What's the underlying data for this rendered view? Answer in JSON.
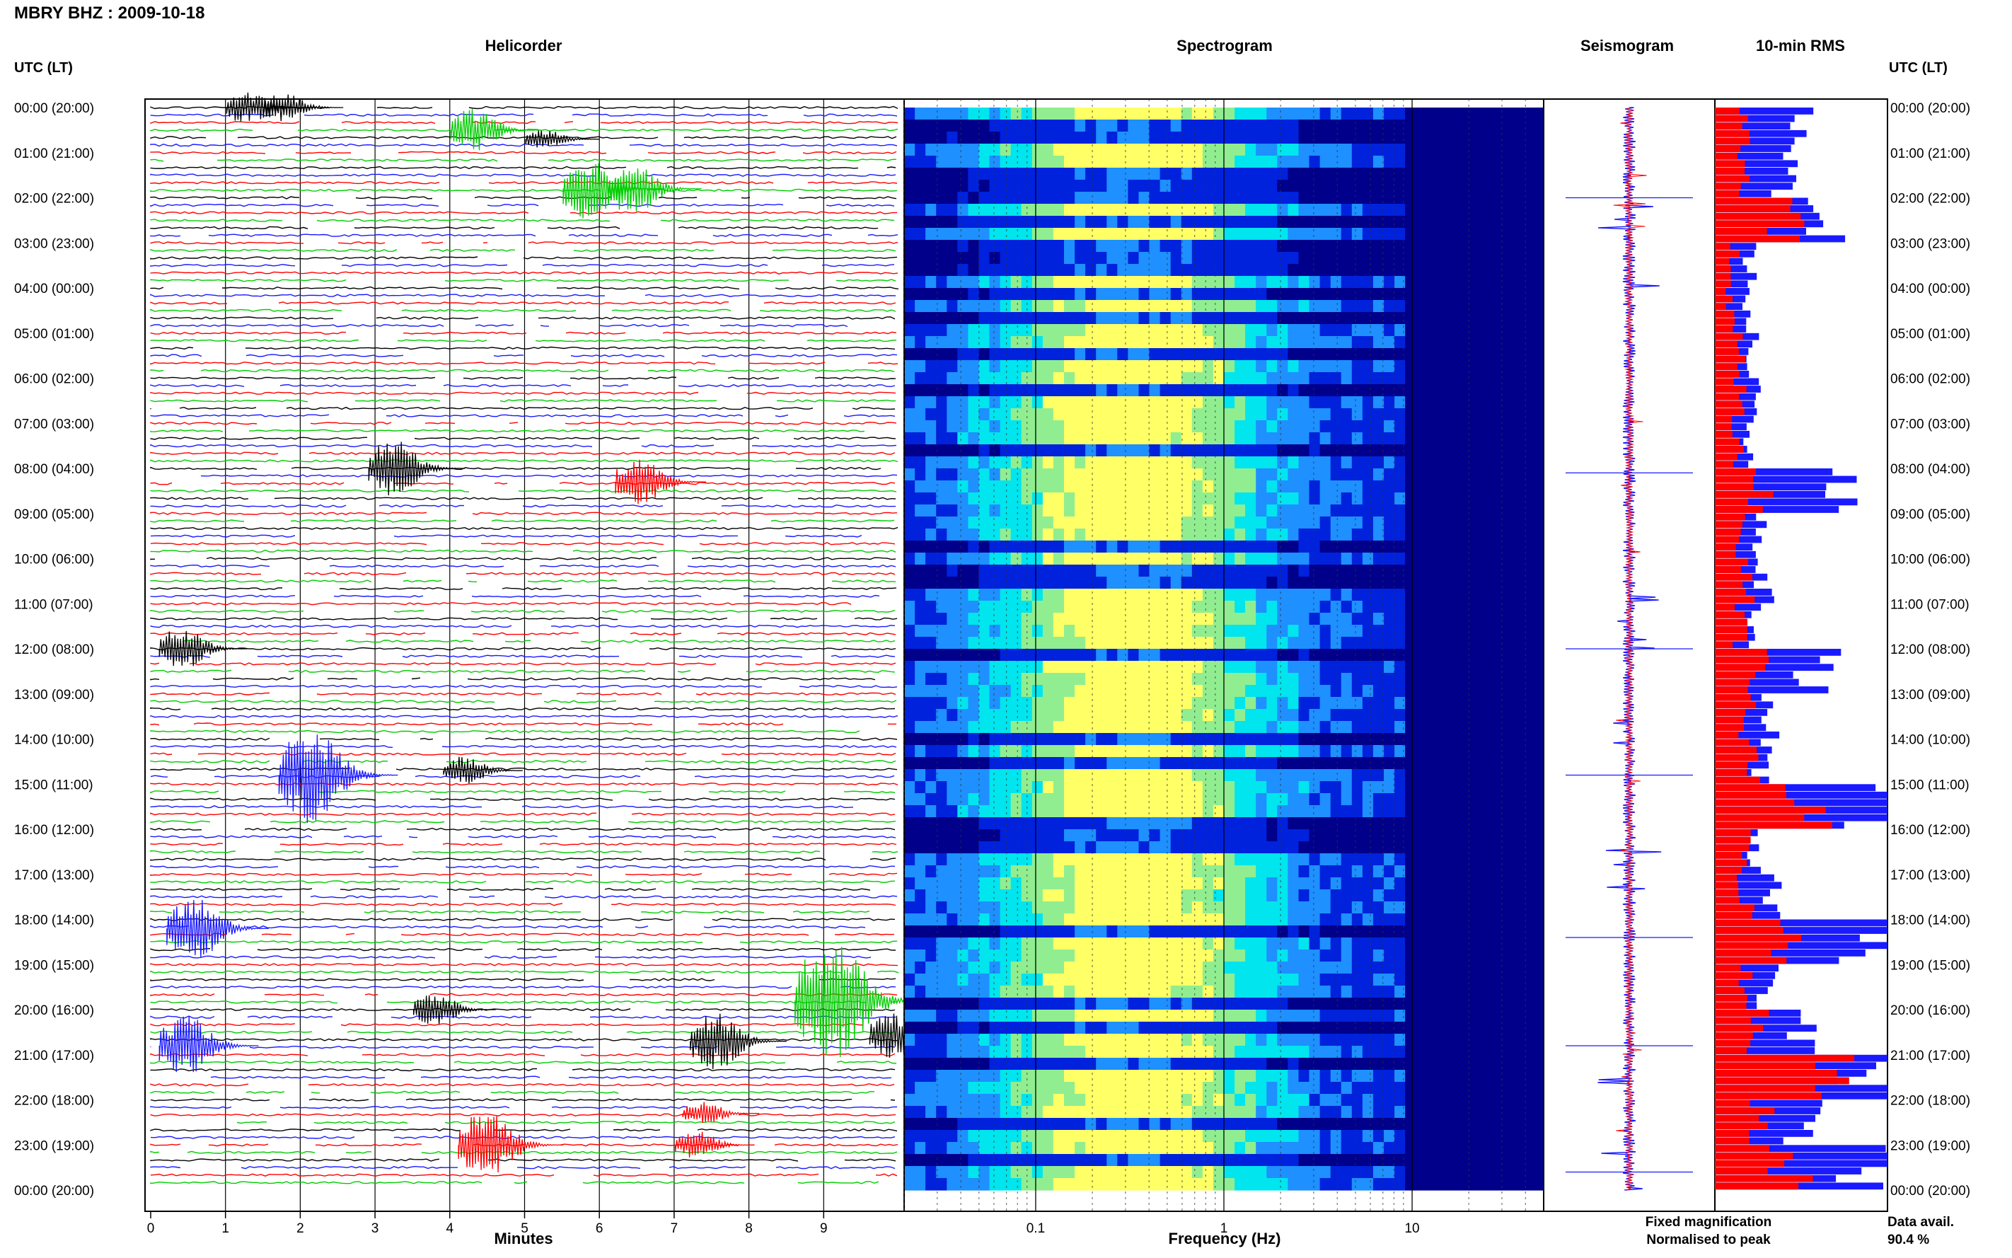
{
  "figure": {
    "title": "MBRY BHZ : 2009-10-18",
    "panels": {
      "helicorder": "Helicorder",
      "spectrogram": "Spectrogram",
      "seismogram": "Seismogram",
      "rms": "10-min RMS"
    },
    "left_axis_header": "UTC (LT)",
    "right_axis_header": "UTC (LT)",
    "legend": {
      "fixed": "Fixed magnification",
      "normalised": "Normalised to peak",
      "fixed_color": "#1a1aff",
      "normalised_color": "#ff0000"
    },
    "data_availability": {
      "label": "Data avail.",
      "value": "90.4 %"
    }
  },
  "chart_data": [
    {
      "type": "line",
      "panel": "helicorder",
      "xlabel": "Minutes",
      "x_ticks": [
        "0",
        "1",
        "2",
        "3",
        "4",
        "5",
        "6",
        "7",
        "8",
        "9"
      ],
      "xlim": [
        0,
        10
      ],
      "trace_minutes_per_line": 10,
      "trace_colors": [
        "#000000",
        "#1a1aff",
        "#ff0000",
        "#00cc00"
      ],
      "time_labels": [
        "00:00 (20:00)",
        "01:00 (21:00)",
        "02:00 (22:00)",
        "03:00 (23:00)",
        "04:00 (00:00)",
        "05:00 (01:00)",
        "06:00 (02:00)",
        "07:00 (03:00)",
        "08:00 (04:00)",
        "09:00 (05:00)",
        "10:00 (06:00)",
        "11:00 (07:00)",
        "12:00 (08:00)",
        "13:00 (09:00)",
        "14:00 (10:00)",
        "15:00 (11:00)",
        "16:00 (12:00)",
        "17:00 (13:00)",
        "18:00 (14:00)",
        "19:00 (15:00)",
        "20:00 (16:00)",
        "21:00 (17:00)",
        "22:00 (18:00)",
        "23:00 (19:00)",
        "00:00 (20:00)"
      ],
      "events": [
        {
          "hour": 0.0,
          "minute": 1.3,
          "amp": 0.7
        },
        {
          "hour": 0.0,
          "minute": 1.8,
          "amp": 0.6
        },
        {
          "hour": 0.5,
          "minute": 4.3,
          "amp": 0.9
        },
        {
          "hour": 0.7,
          "minute": 5.3,
          "amp": 0.4
        },
        {
          "hour": 1.8,
          "minute": 5.8,
          "amp": 1.3
        },
        {
          "hour": 1.8,
          "minute": 6.4,
          "amp": 1.1
        },
        {
          "hour": 8.0,
          "minute": 3.2,
          "amp": 1.2
        },
        {
          "hour": 8.3,
          "minute": 6.5,
          "amp": 1.0
        },
        {
          "hour": 12.0,
          "minute": 0.4,
          "amp": 0.9
        },
        {
          "hour": 14.8,
          "minute": 2.0,
          "amp": 2.0
        },
        {
          "hour": 14.7,
          "minute": 4.2,
          "amp": 0.6
        },
        {
          "hour": 18.2,
          "minute": 0.5,
          "amp": 1.4
        },
        {
          "hour": 19.8,
          "minute": 8.9,
          "amp": 2.6
        },
        {
          "hour": 20.0,
          "minute": 3.8,
          "amp": 0.7
        },
        {
          "hour": 20.8,
          "minute": 0.4,
          "amp": 1.3
        },
        {
          "hour": 20.7,
          "minute": 7.5,
          "amp": 1.2
        },
        {
          "hour": 20.6,
          "minute": 9.9,
          "amp": 1.0
        },
        {
          "hour": 23.0,
          "minute": 4.4,
          "amp": 1.5
        },
        {
          "hour": 23.0,
          "minute": 7.3,
          "amp": 0.6
        },
        {
          "hour": 22.3,
          "minute": 7.4,
          "amp": 0.5
        }
      ]
    },
    {
      "type": "heatmap",
      "panel": "spectrogram",
      "xlabel": "Frequency (Hz)",
      "x_scale": "log",
      "xlim": [
        0.02,
        50
      ],
      "x_tick_labels": [
        {
          "value": 0.1,
          "label": "0.1"
        },
        {
          "value": 1,
          "label": "1"
        },
        {
          "value": 10,
          "label": "10"
        }
      ],
      "ylim_hours": [
        0,
        24
      ],
      "colormap": [
        "#00008b",
        "#0022dd",
        "#1e90ff",
        "#00e5ee",
        "#90ee90",
        "#ffff66"
      ],
      "peak_frequency_hz": 0.3
    },
    {
      "type": "line",
      "panel": "seismogram",
      "ylim_hours": [
        0,
        24
      ],
      "series": [
        {
          "name": "Fixed magnification",
          "color": "#1a1aff"
        },
        {
          "name": "Normalised to peak",
          "color": "#ff0000"
        }
      ]
    },
    {
      "type": "bar",
      "panel": "rms",
      "orientation": "horizontal",
      "bin_minutes": 10,
      "series": [
        {
          "name": "Fixed magnification",
          "color": "#1a1aff",
          "hourly_values": [
            0.5,
            0.45,
            0.72,
            0.22,
            0.18,
            0.24,
            0.28,
            0.22,
            0.82,
            0.28,
            0.3,
            0.26,
            0.64,
            0.34,
            0.3,
            1.0,
            0.26,
            0.34,
            0.98,
            0.34,
            0.52,
            1.0,
            0.56,
            1.0
          ]
        },
        {
          "name": "Normalised to peak",
          "color": "#ff0000",
          "hourly_values": [
            0.2,
            0.18,
            0.5,
            0.12,
            0.1,
            0.15,
            0.16,
            0.14,
            0.3,
            0.16,
            0.2,
            0.16,
            0.28,
            0.2,
            0.22,
            0.62,
            0.18,
            0.2,
            0.45,
            0.22,
            0.3,
            0.7,
            0.32,
            0.5
          ]
        }
      ]
    }
  ]
}
